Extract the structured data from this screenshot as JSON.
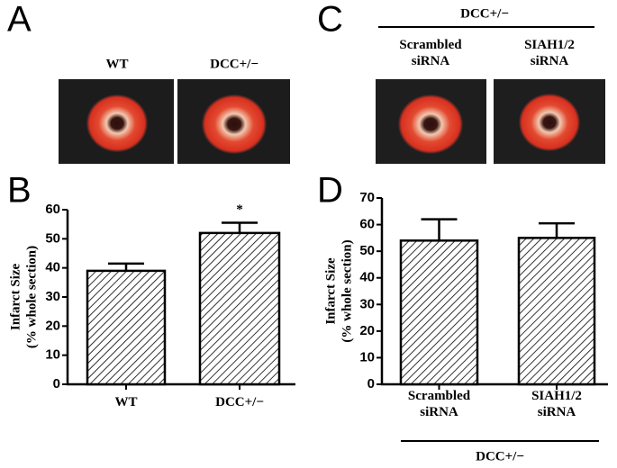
{
  "panels": [
    "A",
    "B",
    "C",
    "D"
  ],
  "photos": {
    "A": {
      "labels": [
        "WT",
        "DCC+/−"
      ]
    },
    "C": {
      "group": "DCC+/−",
      "labels": [
        "Scrambled siRNA",
        "SIAH1/2 siRNA"
      ]
    }
  },
  "chart_data": [
    {
      "type": "bar",
      "ylabel": [
        "Infarct Size",
        "(% whole section)"
      ],
      "categories": [
        "WT",
        "DCC+/−"
      ],
      "values": [
        39,
        52
      ],
      "errors": [
        2.5,
        3.5
      ],
      "significance": [
        null,
        "*"
      ],
      "color": "#000000",
      "ylim": [
        0,
        60
      ],
      "yticks": [
        0,
        10,
        20,
        30,
        40,
        50,
        60
      ]
    },
    {
      "type": "bar",
      "ylabel": [
        "Infarct Size",
        "(% whole section)"
      ],
      "categories": [
        "Scrambled siRNA",
        "SIAH1/2 siRNA"
      ],
      "values": [
        54,
        55
      ],
      "errors": [
        8,
        5.5
      ],
      "group_label": "DCC+/−",
      "color": "#000000",
      "ylim": [
        0,
        70
      ],
      "yticks": [
        0,
        10,
        20,
        30,
        40,
        50,
        60,
        70
      ]
    }
  ]
}
